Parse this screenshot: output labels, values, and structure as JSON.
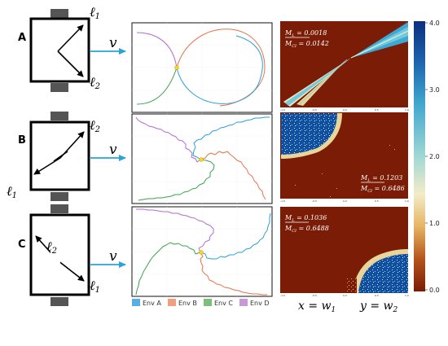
{
  "rows": [
    {
      "panel": "A",
      "sensors": [
        {
          "sym": "ℓ",
          "sub": "1"
        },
        {
          "sym": "ℓ",
          "sub": "2"
        }
      ],
      "velocity": "v",
      "m_top": {
        "sym": "M",
        "sub": "L",
        "eq": " = 0.0018"
      },
      "m_bot": {
        "sym": "M",
        "sub": "CI",
        "eq": " = 0.0142"
      }
    },
    {
      "panel": "B",
      "sensors": [
        {
          "sym": "ℓ",
          "sub": "2"
        },
        {
          "sym": "ℓ",
          "sub": "1"
        }
      ],
      "velocity": "v",
      "m_top": {
        "sym": "M",
        "sub": "L",
        "eq": " = 0.1203"
      },
      "m_bot": {
        "sym": "M",
        "sub": "CI",
        "eq": " = 0.6486"
      }
    },
    {
      "panel": "C",
      "sensors": [
        {
          "sym": "ℓ",
          "sub": "2"
        },
        {
          "sym": "ℓ",
          "sub": "1"
        }
      ],
      "velocity": "v",
      "m_top": {
        "sym": "M",
        "sub": "L",
        "eq": " = 0.1036"
      },
      "m_bot": {
        "sym": "M",
        "sub": "CI",
        "eq": " = 0.6488"
      }
    }
  ],
  "legend": [
    {
      "label": "Env A",
      "color": "#5aaee6"
    },
    {
      "label": "Env B",
      "color": "#f0a07e"
    },
    {
      "label": "Env C",
      "color": "#7bbf7b"
    },
    {
      "label": "Env D",
      "color": "#c79ad6"
    }
  ],
  "axes": {
    "x_label": {
      "sym": "x = w",
      "sub": "1"
    },
    "y_label": {
      "sym": "y = w",
      "sub": "2"
    },
    "tick_labels": [
      "-1.0",
      "-0.5",
      "0.0",
      "0.5",
      "1.0"
    ]
  },
  "colorbar": {
    "ticks": [
      "4.0",
      "3.0",
      "2.0",
      "1.0",
      "0.0"
    ],
    "min": 0,
    "max": 4
  },
  "colors": {
    "env_a": "#2a9fd8",
    "env_b": "#e8724a",
    "env_c": "#3aa34a",
    "env_d": "#b46bd0",
    "heatmap_low": "#7a1c06",
    "heatmap_high": "#0b2f7e",
    "arrow": "#29a3d8",
    "sensor": "#555555"
  }
}
